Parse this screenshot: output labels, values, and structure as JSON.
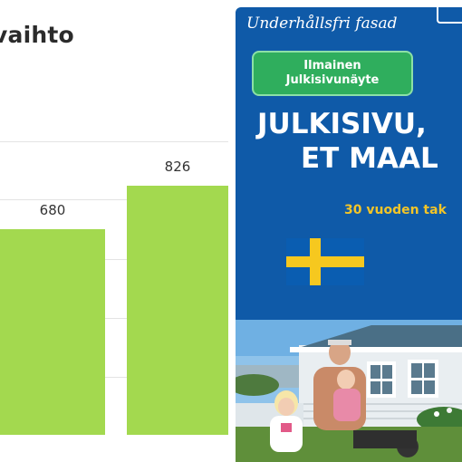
{
  "chart": {
    "title": "vaihto"
  },
  "chart_data": {
    "type": "bar",
    "categories": [
      "",
      ""
    ],
    "values": [
      680,
      826
    ],
    "title": "vaihto",
    "xlabel": "",
    "ylabel": "",
    "ylim": [
      0,
      1000
    ],
    "grid": true
  },
  "ad": {
    "top_text": "Underhållsfri fasad",
    "cta_line1": "Ilmainen",
    "cta_line2": "Julkisivunäyte",
    "headline_line1": "JULKISIVU,",
    "headline_line2": "ET MAAL",
    "subtext": "30 vuoden tak",
    "colors": {
      "background": "#0f5aa8",
      "cta": "#2fae5d",
      "subtext": "#f3c528",
      "flag_blue": "#0a5db1",
      "flag_yellow": "#f6c81f",
      "bar": "#a3d94f"
    }
  }
}
